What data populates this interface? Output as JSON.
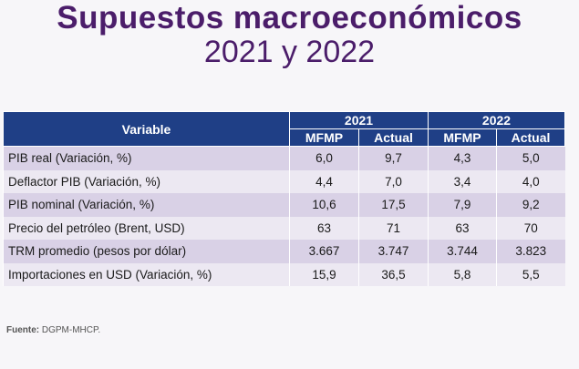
{
  "title": "Supuestos macroeconómicos",
  "subtitle": "2021 y 2022",
  "table": {
    "variable_header": "Variable",
    "years": [
      "2021",
      "2022"
    ],
    "subheaders": [
      "MFMP",
      "Actual",
      "MFMP",
      "Actual"
    ],
    "rows": [
      {
        "label": "PIB real (Variación, %)",
        "values": [
          "6,0",
          "9,7",
          "4,3",
          "5,0"
        ]
      },
      {
        "label": "Deflactor PIB (Variación, %)",
        "values": [
          "4,4",
          "7,0",
          "3,4",
          "4,0"
        ]
      },
      {
        "label": "PIB nominal (Variación, %)",
        "values": [
          "10,6",
          "17,5",
          "7,9",
          "9,2"
        ]
      },
      {
        "label": "Precio del petróleo (Brent, USD)",
        "values": [
          "63",
          "71",
          "63",
          "70"
        ]
      },
      {
        "label": "TRM promedio (pesos por dólar)",
        "values": [
          "3.667",
          "3.747",
          "3.744",
          "3.823"
        ]
      },
      {
        "label": "Importaciones en USD (Variación, %)",
        "values": [
          "15,9",
          "36,5",
          "5,8",
          "5,5"
        ]
      }
    ]
  },
  "source": {
    "label": "Fuente:",
    "text": "DGPM-MHCP."
  },
  "colors": {
    "title": "#4b1d6a",
    "header_bg": "#1f3f86",
    "row_odd": "#d9d1e6",
    "row_even": "#ece8f2"
  }
}
